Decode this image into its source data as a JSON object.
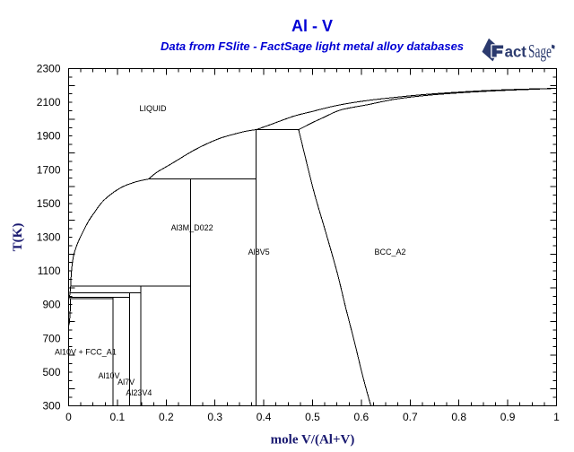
{
  "header": {
    "title": "Al - V",
    "subtitle": "Data from FSlite - FactSage light metal alloy databases",
    "title_color": "#0000d4",
    "subtitle_color": "#0000d4"
  },
  "logo": {
    "text_bold": "Fact",
    "text_serif": "Sage",
    "color": "#2b3a6e"
  },
  "chart_data": {
    "type": "line",
    "title": "Al - V",
    "subtitle": "Data from FSlite - FactSage light metal alloy databases",
    "xlabel": "mole V/(Al+V)",
    "ylabel": "T(K)",
    "xlim": [
      0,
      1
    ],
    "ylim": [
      300,
      2300
    ],
    "x_major_step": 0.1,
    "x_minor_step": 0.025,
    "y_major_step": 200,
    "y_minor_step": 50,
    "x_tick_labels": [
      "0",
      "0.1",
      "0.2",
      "0.3",
      "0.4",
      "0.5",
      "0.6",
      "0.7",
      "0.8",
      "0.9",
      "1"
    ],
    "y_tick_labels": [
      "300",
      "500",
      "700",
      "900",
      "1100",
      "1300",
      "1500",
      "1700",
      "1900",
      "2100",
      "2300"
    ],
    "axis_title_color": "#191970",
    "line_color": "#000000",
    "grid": false,
    "legend": false,
    "series": [
      {
        "name": "liquidus-al-rich",
        "smooth": true,
        "points": [
          [
            0.0,
            933.5
          ],
          [
            0.001,
            942
          ],
          [
            0.002,
            953
          ],
          [
            0.003,
            971
          ],
          [
            0.0042,
            1009
          ],
          [
            0.005,
            1060
          ],
          [
            0.007,
            1130
          ],
          [
            0.011,
            1200
          ],
          [
            0.019,
            1268
          ],
          [
            0.03,
            1335
          ],
          [
            0.041,
            1396
          ],
          [
            0.052,
            1443
          ],
          [
            0.068,
            1506
          ],
          [
            0.09,
            1562
          ],
          [
            0.112,
            1601
          ],
          [
            0.134,
            1625
          ],
          [
            0.15,
            1637
          ],
          [
            0.164,
            1645
          ]
        ]
      },
      {
        "name": "liquidus-central",
        "smooth": true,
        "points": [
          [
            0.164,
            1645
          ],
          [
            0.172,
            1665
          ],
          [
            0.183,
            1689
          ],
          [
            0.211,
            1736
          ],
          [
            0.259,
            1819
          ],
          [
            0.306,
            1882
          ],
          [
            0.344,
            1915
          ],
          [
            0.362,
            1928
          ],
          [
            0.377,
            1935
          ],
          [
            0.3846,
            1938
          ]
        ]
      },
      {
        "name": "liquidus-v-rich",
        "smooth": true,
        "points": [
          [
            0.3846,
            1938
          ],
          [
            0.41,
            1964
          ],
          [
            0.44,
            1996
          ],
          [
            0.466,
            2022
          ],
          [
            0.5,
            2046
          ],
          [
            0.521,
            2062
          ],
          [
            0.558,
            2086
          ],
          [
            0.613,
            2111
          ],
          [
            0.668,
            2129
          ],
          [
            0.72,
            2144
          ],
          [
            0.78,
            2157
          ],
          [
            0.85,
            2169
          ],
          [
            0.92,
            2177
          ],
          [
            1.0,
            2183
          ]
        ]
      },
      {
        "name": "bcc-solidus",
        "smooth": true,
        "points": [
          [
            0.4716,
            1938
          ],
          [
            0.5,
            1980
          ],
          [
            0.521,
            2008
          ],
          [
            0.558,
            2055
          ],
          [
            0.613,
            2086
          ],
          [
            0.668,
            2118
          ],
          [
            0.73,
            2140
          ],
          [
            0.8,
            2156
          ],
          [
            0.88,
            2169
          ],
          [
            0.95,
            2177
          ],
          [
            1.0,
            2183
          ]
        ]
      },
      {
        "name": "bcc-al8v5-boundary",
        "smooth": true,
        "points": [
          [
            0.4716,
            1936
          ],
          [
            0.478,
            1860
          ],
          [
            0.4835,
            1794
          ],
          [
            0.504,
            1557
          ],
          [
            0.528,
            1320
          ],
          [
            0.551,
            1084
          ],
          [
            0.568,
            881
          ],
          [
            0.586,
            678
          ],
          [
            0.603,
            475
          ],
          [
            0.6195,
            300
          ]
        ]
      },
      {
        "name": "fcc-solvus",
        "smooth": true,
        "points": [
          [
            0.0035,
            934
          ],
          [
            0.0035,
            880
          ],
          [
            0.0028,
            840
          ],
          [
            0.0018,
            800
          ],
          [
            0.001,
            780
          ]
        ]
      }
    ],
    "invariant_lines": [
      {
        "name": "peritectic-L-BCC-Al8V5",
        "T": 1938,
        "x1": 0.3846,
        "x2": 0.4716
      },
      {
        "name": "peritectic-L-Al8V5-Al3M",
        "T": 1645,
        "x1": 0.164,
        "x2": 0.3846
      },
      {
        "name": "peritectic-L-Al3M-Al23V4",
        "T": 1009,
        "x1": 0.0042,
        "x2": 0.25
      },
      {
        "name": "peritectic-L-Al23V4-Al7V",
        "T": 971,
        "x1": 0.003,
        "x2": 0.1481
      },
      {
        "name": "peritectic-L-Al7V-Al10V",
        "T": 944,
        "x1": 0.0022,
        "x2": 0.125
      },
      {
        "name": "peritectic-L-Al10V-FCC",
        "T": 936,
        "x1": 0.0015,
        "x2": 0.0909
      }
    ],
    "compound_lines": [
      {
        "name": "Al10V",
        "x": 0.0909,
        "T1": 300,
        "T2": 944
      },
      {
        "name": "Al7V",
        "x": 0.125,
        "T1": 300,
        "T2": 971
      },
      {
        "name": "Al23V4",
        "x": 0.1481,
        "T1": 300,
        "T2": 1009
      },
      {
        "name": "Al3M_D022",
        "x": 0.25,
        "T1": 300,
        "T2": 1645
      },
      {
        "name": "Al8V5",
        "x": 0.3846,
        "T1": 300,
        "T2": 1938
      }
    ],
    "region_labels": [
      {
        "text": "LIQUID",
        "x": 0.1727,
        "T": 2066
      },
      {
        "text": "Al3M_D022",
        "x": 0.253,
        "T": 1358
      },
      {
        "text": "Al8V5",
        "x": 0.39,
        "T": 1215
      },
      {
        "text": "BCC_A2",
        "x": 0.659,
        "T": 1215
      },
      {
        "text": "Al10V + FCC_A1",
        "x": 0.0348,
        "T": 621
      },
      {
        "text": "Al10V",
        "x": 0.0827,
        "T": 482
      },
      {
        "text": "Al7V",
        "x": 0.118,
        "T": 444
      },
      {
        "text": "Al23V4",
        "x": 0.144,
        "T": 379
      }
    ]
  }
}
